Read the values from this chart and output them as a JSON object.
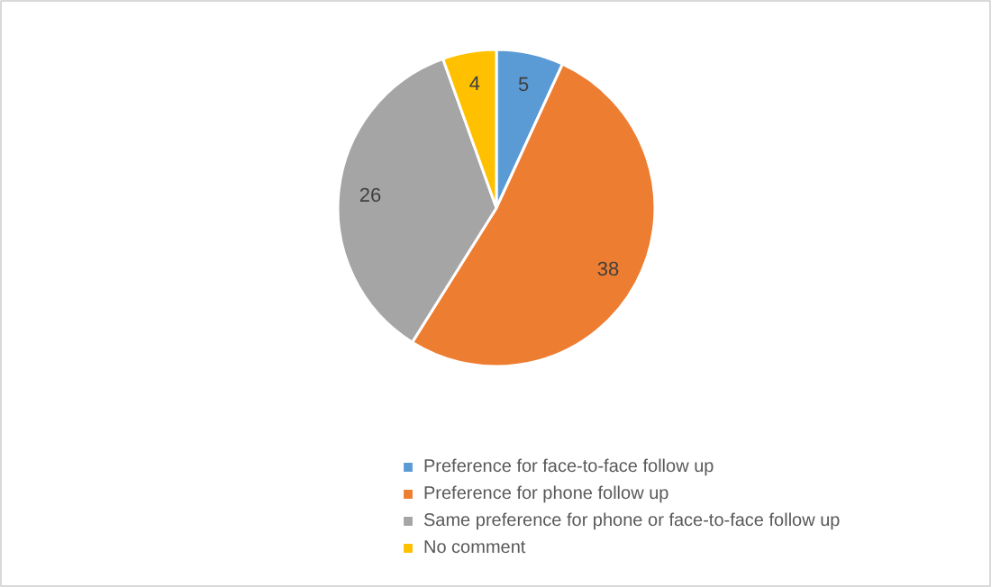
{
  "chart_data": {
    "type": "pie",
    "categories": [
      "Preference for face-to-face follow up",
      "Preference for phone follow up",
      "Same preference for phone or face-to-face follow up",
      "No comment"
    ],
    "values": [
      5,
      38,
      26,
      4
    ],
    "colors": [
      "#5b9bd5",
      "#ed7d31",
      "#a5a5a5",
      "#ffc000"
    ],
    "data_labels": true,
    "legend": "bottom"
  }
}
